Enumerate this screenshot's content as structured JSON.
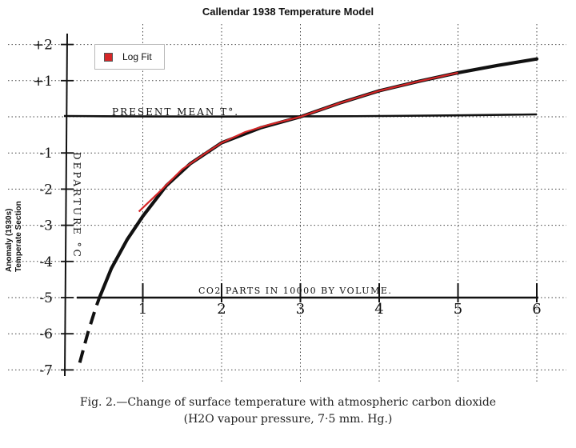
{
  "chart_data": {
    "type": "line",
    "title": "Callendar 1938 Temperature Model",
    "ylabel_lines": [
      "Anomaly (1930s)",
      "Temperate Section"
    ],
    "xlim": [
      0,
      6
    ],
    "ylim": [
      -7.5,
      2
    ],
    "x_ticks": [
      "1",
      "2",
      "3",
      "4",
      "5",
      "6"
    ],
    "y_ticks": [
      "+2",
      "+1",
      "-1",
      "-2",
      "-3",
      "-4",
      "-5",
      "-6",
      "-7"
    ],
    "grid": true,
    "legend_position": "top-left",
    "scan_annotations": {
      "present_mean": "PRESENT MEAN T°.",
      "departure": "DEPARTURE °C",
      "co2_label": "CO2 PARTS IN 10000 BY VOLUME."
    },
    "series": [
      {
        "name": "Log Fit",
        "color": "#d62728",
        "x": [
          0.95,
          1.2,
          1.5,
          1.8,
          2.0,
          2.3,
          2.6,
          3.0,
          3.5,
          4.0,
          4.5,
          5.0
        ],
        "y": [
          -2.62,
          -2.1,
          -1.45,
          -1.0,
          -0.72,
          -0.42,
          -0.22,
          0.0,
          0.38,
          0.72,
          0.98,
          1.22
        ]
      },
      {
        "name": "",
        "color": "#111111",
        "x": [
          0.45,
          0.6,
          0.8,
          1.0,
          1.3,
          1.6,
          2.0,
          2.5,
          3.0,
          3.5,
          4.0,
          4.5,
          5.0,
          5.5,
          6.0
        ],
        "y": [
          -5.0,
          -4.2,
          -3.4,
          -2.75,
          -1.9,
          -1.3,
          -0.72,
          -0.3,
          0.0,
          0.38,
          0.72,
          0.98,
          1.22,
          1.42,
          1.6
        ]
      }
    ],
    "extrapolated_dashed": {
      "x": [
        0.2,
        0.3,
        0.4,
        0.45
      ],
      "y": [
        -6.8,
        -6.0,
        -5.3,
        -5.0
      ]
    },
    "reference_lines": [
      {
        "label": "present mean",
        "y": 0.0
      },
      {
        "label": "co2 axis",
        "y": -5.0
      }
    ]
  },
  "caption": {
    "line1": "Fig. 2.—Change of surface temperature with atmospheric carbon dioxide",
    "line2": "(H2O vapour pressure, 7·5 mm. Hg.)"
  }
}
